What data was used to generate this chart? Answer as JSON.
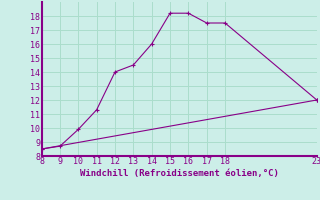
{
  "xlabel": "Windchill (Refroidissement éolien,°C)",
  "bg_color": "#cceee8",
  "line_color": "#880088",
  "curve1_x": [
    8,
    9,
    10,
    11,
    12,
    13,
    14,
    15,
    16,
    17,
    18,
    23
  ],
  "curve1_y": [
    8.5,
    8.7,
    9.9,
    11.3,
    14.0,
    14.5,
    16.0,
    18.2,
    18.2,
    17.5,
    17.5,
    12.0
  ],
  "curve2_x": [
    8,
    23
  ],
  "curve2_y": [
    8.5,
    12.0
  ],
  "xlim": [
    8,
    23
  ],
  "ylim": [
    8,
    19
  ],
  "xticks": [
    8,
    9,
    10,
    11,
    12,
    13,
    14,
    15,
    16,
    17,
    18,
    23
  ],
  "yticks": [
    8,
    9,
    10,
    11,
    12,
    13,
    14,
    15,
    16,
    17,
    18
  ],
  "grid_color": "#aaddcc",
  "marker": "+"
}
